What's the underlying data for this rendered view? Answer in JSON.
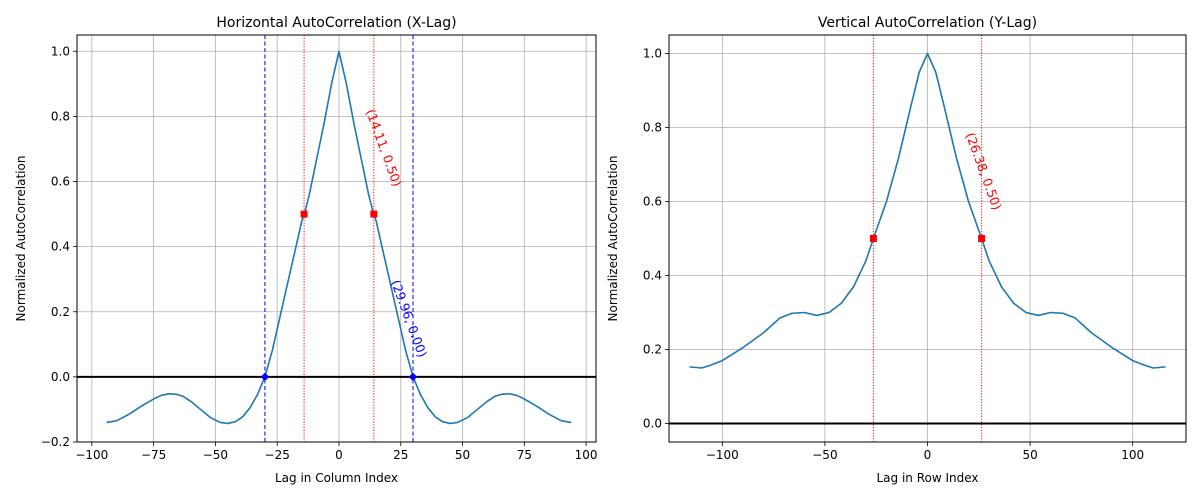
{
  "chart_data": [
    {
      "type": "line",
      "title": "Horizontal AutoCorrelation (X-Lag)",
      "xlabel": "Lag in Column Index",
      "ylabel": "Normalized AutoCorrelation",
      "xlim": [
        -106,
        104
      ],
      "ylim": [
        -0.2,
        1.05
      ],
      "xticks": [
        -100,
        -75,
        -50,
        -25,
        0,
        25,
        50,
        75,
        100
      ],
      "yticks": [
        -0.2,
        0.0,
        0.2,
        0.4,
        0.6,
        0.8,
        1.0
      ],
      "xtick_labels": [
        "−100",
        "−75",
        "−50",
        "−25",
        "0",
        "25",
        "50",
        "75",
        "100"
      ],
      "ytick_labels": [
        "−0.2",
        "0.0",
        "0.2",
        "0.4",
        "0.6",
        "0.8",
        "1.0"
      ],
      "grid": true,
      "color": "#1f77b4",
      "series": [
        {
          "x": [
            -94,
            -90,
            -85,
            -80,
            -75,
            -72,
            -69,
            -66,
            -63,
            -60,
            -56,
            -52,
            -48,
            -45,
            -42,
            -39,
            -36,
            -33,
            -30,
            -27,
            -24,
            -21,
            -18,
            -15,
            -14,
            -12,
            -9,
            -6,
            -3,
            0,
            3,
            6,
            9,
            12,
            14,
            15,
            18,
            21,
            24,
            27,
            30,
            33,
            36,
            39,
            42,
            45,
            48,
            52,
            56,
            60,
            63,
            66,
            69,
            72,
            75,
            80,
            85,
            90,
            94
          ],
          "y": [
            -0.14,
            -0.135,
            -0.115,
            -0.09,
            -0.068,
            -0.057,
            -0.052,
            -0.053,
            -0.06,
            -0.075,
            -0.1,
            -0.125,
            -0.14,
            -0.143,
            -0.138,
            -0.123,
            -0.095,
            -0.055,
            0.0,
            0.08,
            0.18,
            0.28,
            0.38,
            0.48,
            0.5,
            0.56,
            0.67,
            0.78,
            0.9,
            1.0,
            0.9,
            0.78,
            0.67,
            0.56,
            0.5,
            0.48,
            0.38,
            0.28,
            0.18,
            0.08,
            0.0,
            -0.055,
            -0.095,
            -0.123,
            -0.138,
            -0.143,
            -0.14,
            -0.125,
            -0.1,
            -0.075,
            -0.06,
            -0.053,
            -0.052,
            -0.057,
            -0.068,
            -0.09,
            -0.115,
            -0.135,
            -0.14
          ]
        }
      ],
      "hline_y": 0.0,
      "vlines": [
        {
          "x": -29.96,
          "style": "dashed",
          "color": "#0000ff"
        },
        {
          "x": 29.96,
          "style": "dashed",
          "color": "#0000ff"
        },
        {
          "x": -14.11,
          "style": "dotted",
          "color": "#ff0000"
        },
        {
          "x": 14.11,
          "style": "dotted",
          "color": "#ff0000"
        }
      ],
      "markers": [
        {
          "x": -14.11,
          "y": 0.5,
          "shape": "square",
          "color": "#ff0000"
        },
        {
          "x": 14.11,
          "y": 0.5,
          "shape": "square",
          "color": "#ff0000"
        },
        {
          "x": -29.96,
          "y": 0.0,
          "shape": "diamond",
          "color": "#0000ff"
        },
        {
          "x": 29.96,
          "y": 0.0,
          "shape": "diamond",
          "color": "#0000ff"
        }
      ],
      "annotations": [
        {
          "text": "(14.11, 0.50)",
          "x": 14.11,
          "y": 0.5,
          "color": "#ff0000"
        },
        {
          "text": "(29.96, 0.00)",
          "x": 29.96,
          "y": 0.0,
          "color": "#0000ff"
        }
      ]
    },
    {
      "type": "line",
      "title": "Vertical AutoCorrelation (Y-Lag)",
      "xlabel": "Lag in Row Index",
      "ylabel": "Normalized AutoCorrelation",
      "xlim": [
        -126,
        126
      ],
      "ylim": [
        -0.05,
        1.05
      ],
      "xticks": [
        -100,
        -50,
        0,
        50,
        100
      ],
      "yticks": [
        0.0,
        0.2,
        0.4,
        0.6,
        0.8,
        1.0
      ],
      "xtick_labels": [
        "−100",
        "−50",
        "0",
        "50",
        "100"
      ],
      "ytick_labels": [
        "0.0",
        "0.2",
        "0.4",
        "0.6",
        "0.8",
        "1.0"
      ],
      "grid": true,
      "color": "#1f77b4",
      "series": [
        {
          "x": [
            -116,
            -110,
            -106,
            -100,
            -90,
            -80,
            -72,
            -66,
            -60,
            -54,
            -48,
            -42,
            -36,
            -30,
            -26.38,
            -20,
            -14,
            -8,
            -4,
            0,
            4,
            8,
            14,
            20,
            26.38,
            30,
            36,
            42,
            48,
            54,
            60,
            66,
            72,
            80,
            90,
            100,
            106,
            110,
            116
          ],
          "y": [
            0.153,
            0.15,
            0.157,
            0.17,
            0.205,
            0.245,
            0.285,
            0.298,
            0.3,
            0.292,
            0.3,
            0.325,
            0.37,
            0.44,
            0.5,
            0.6,
            0.72,
            0.86,
            0.95,
            1.0,
            0.95,
            0.86,
            0.72,
            0.6,
            0.5,
            0.44,
            0.37,
            0.325,
            0.3,
            0.292,
            0.3,
            0.298,
            0.285,
            0.245,
            0.205,
            0.17,
            0.157,
            0.15,
            0.153
          ]
        }
      ],
      "hline_y": 0.0,
      "vlines": [
        {
          "x": -26.38,
          "style": "dotted",
          "color": "#ff0000"
        },
        {
          "x": 26.38,
          "style": "dotted",
          "color": "#ff0000"
        }
      ],
      "markers": [
        {
          "x": -26.38,
          "y": 0.5,
          "shape": "square",
          "color": "#ff0000"
        },
        {
          "x": 26.38,
          "y": 0.5,
          "shape": "square",
          "color": "#ff0000"
        }
      ],
      "annotations": [
        {
          "text": "(26.38, 0.50)",
          "x": 26.38,
          "y": 0.5,
          "color": "#ff0000"
        }
      ]
    }
  ]
}
